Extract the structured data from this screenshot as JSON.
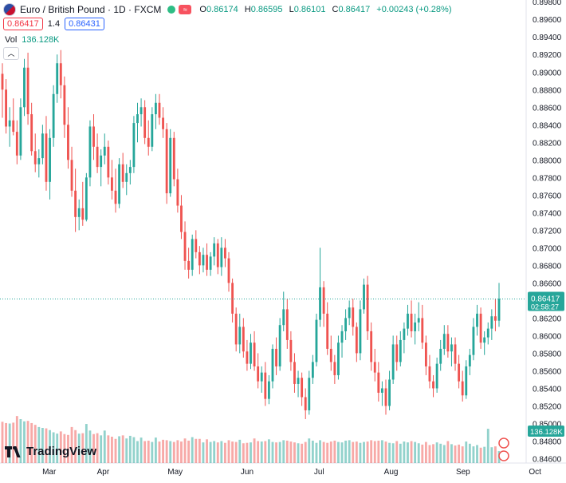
{
  "header": {
    "symbol_title": "Euro / British Pound · 1D · FXCM",
    "ohlc": [
      {
        "k": "O",
        "v": "0.86174"
      },
      {
        "k": "H",
        "v": "0.86595"
      },
      {
        "k": "L",
        "v": "0.86101"
      },
      {
        "k": "C",
        "v": "0.86417"
      },
      {
        "k": "",
        "v": "+0.00243 (+0.28%)"
      }
    ],
    "sell_price": "0.86417",
    "spread": "1.4",
    "buy_price": "0.86431",
    "volume_label": "Vol",
    "volume_value": "136.128K",
    "colors": {
      "up": "#26a69a",
      "down": "#ef5350",
      "accent": "#2962ff"
    }
  },
  "price_scale_labels": [
    "0.89800",
    "0.89600",
    "0.89400",
    "0.89200",
    "0.89000",
    "0.88800",
    "0.88600",
    "0.88400",
    "0.88200",
    "0.88000",
    "0.87800",
    "0.87600",
    "0.87400",
    "0.87200",
    "0.87000",
    "0.86800",
    "0.86600",
    "0.86400",
    "0.86200",
    "0.86000",
    "0.85800",
    "0.85600",
    "0.85400",
    "0.85200",
    "0.85000",
    "0.84800",
    "0.84600"
  ],
  "last_price_label": "0.86417",
  "countdown_label": "02:58:27",
  "volume_tag": "136.128K",
  "time_labels": [
    "Mar",
    "Apr",
    "May",
    "Jun",
    "Jul",
    "Aug",
    "Sep",
    "Oct"
  ],
  "logo_text": "TradingView",
  "chart_data": {
    "type": "candlestick",
    "title": "Euro / British Pound · 1D · FXCM",
    "interval": "1D",
    "ylim": [
      0.8455,
      0.8982
    ],
    "y_ticks": [
      0.898,
      0.896,
      0.894,
      0.892,
      0.89,
      0.888,
      0.886,
      0.884,
      0.882,
      0.88,
      0.878,
      0.876,
      0.874,
      0.872,
      0.87,
      0.868,
      0.866,
      0.864,
      0.862,
      0.86,
      0.858,
      0.856,
      0.854,
      0.852,
      0.85,
      0.848,
      0.846
    ],
    "x_ticks": [
      "Mar",
      "Apr",
      "May",
      "Jun",
      "Jul",
      "Aug",
      "Sep",
      "Oct"
    ],
    "x_tick_days": [
      26,
      56,
      96,
      136,
      176,
      216,
      256,
      296
    ],
    "last_price": 0.86417,
    "grid": false,
    "candles": [
      [
        0.8898,
        0.891,
        0.8848,
        0.888
      ],
      [
        0.888,
        0.8892,
        0.883,
        0.8838
      ],
      [
        0.8838,
        0.886,
        0.8815,
        0.8845
      ],
      [
        0.8845,
        0.887,
        0.8828,
        0.8832
      ],
      [
        0.8832,
        0.8845,
        0.8795,
        0.8805
      ],
      [
        0.8805,
        0.887,
        0.88,
        0.886
      ],
      [
        0.886,
        0.8915,
        0.885,
        0.8905
      ],
      [
        0.8905,
        0.8922,
        0.884,
        0.8852
      ],
      [
        0.8852,
        0.8865,
        0.8805,
        0.881
      ],
      [
        0.881,
        0.883,
        0.8786,
        0.8795
      ],
      [
        0.8795,
        0.8812,
        0.878,
        0.8802
      ],
      [
        0.8802,
        0.884,
        0.8795,
        0.883
      ],
      [
        0.883,
        0.885,
        0.8765,
        0.8775
      ],
      [
        0.8775,
        0.8835,
        0.8755,
        0.8825
      ],
      [
        0.8825,
        0.8885,
        0.8815,
        0.8875
      ],
      [
        0.8875,
        0.892,
        0.8865,
        0.891
      ],
      [
        0.891,
        0.8925,
        0.887,
        0.8885
      ],
      [
        0.8885,
        0.8895,
        0.8825,
        0.884
      ],
      [
        0.884,
        0.886,
        0.879,
        0.88
      ],
      [
        0.88,
        0.8815,
        0.8758,
        0.8765
      ],
      [
        0.8765,
        0.879,
        0.8718,
        0.8735
      ],
      [
        0.8735,
        0.8755,
        0.872,
        0.8745
      ],
      [
        0.8745,
        0.8775,
        0.8725,
        0.8732
      ],
      [
        0.8732,
        0.8785,
        0.873,
        0.878
      ],
      [
        0.878,
        0.8845,
        0.877,
        0.8838
      ],
      [
        0.8838,
        0.8852,
        0.88,
        0.8815
      ],
      [
        0.8815,
        0.883,
        0.8785,
        0.8792
      ],
      [
        0.8792,
        0.8812,
        0.877,
        0.8805
      ],
      [
        0.8805,
        0.883,
        0.8795,
        0.8815
      ],
      [
        0.8815,
        0.8822,
        0.8772,
        0.878
      ],
      [
        0.878,
        0.88,
        0.8755,
        0.8765
      ],
      [
        0.8765,
        0.879,
        0.874,
        0.875
      ],
      [
        0.875,
        0.8802,
        0.8745,
        0.8795
      ],
      [
        0.8795,
        0.8808,
        0.8768,
        0.8775
      ],
      [
        0.8775,
        0.8795,
        0.876,
        0.8785
      ],
      [
        0.8785,
        0.88,
        0.8772,
        0.8792
      ],
      [
        0.8792,
        0.885,
        0.8785,
        0.8842
      ],
      [
        0.8842,
        0.8865,
        0.882,
        0.8852
      ],
      [
        0.8852,
        0.887,
        0.8838,
        0.886
      ],
      [
        0.886,
        0.8868,
        0.8818,
        0.8825
      ],
      [
        0.8825,
        0.8845,
        0.8805,
        0.8815
      ],
      [
        0.8815,
        0.886,
        0.881,
        0.8852
      ],
      [
        0.8852,
        0.8875,
        0.8835,
        0.8865
      ],
      [
        0.8865,
        0.8875,
        0.884,
        0.8848
      ],
      [
        0.8848,
        0.886,
        0.8825,
        0.8835
      ],
      [
        0.8835,
        0.8842,
        0.875,
        0.8762
      ],
      [
        0.8762,
        0.8835,
        0.8758,
        0.8825
      ],
      [
        0.8825,
        0.8832,
        0.877,
        0.8778
      ],
      [
        0.8778,
        0.879,
        0.874,
        0.8748
      ],
      [
        0.8748,
        0.876,
        0.871,
        0.8718
      ],
      [
        0.8718,
        0.873,
        0.8675,
        0.8685
      ],
      [
        0.8685,
        0.87,
        0.8665,
        0.8675
      ],
      [
        0.8675,
        0.8715,
        0.8668,
        0.871
      ],
      [
        0.871,
        0.872,
        0.8688,
        0.8695
      ],
      [
        0.8695,
        0.8702,
        0.867,
        0.868
      ],
      [
        0.868,
        0.87,
        0.8672,
        0.8692
      ],
      [
        0.8692,
        0.8705,
        0.8668,
        0.8675
      ],
      [
        0.8675,
        0.8695,
        0.8668,
        0.869
      ],
      [
        0.869,
        0.8712,
        0.868,
        0.8705
      ],
      [
        0.8705,
        0.871,
        0.867,
        0.8678
      ],
      [
        0.8678,
        0.8712,
        0.8668,
        0.87
      ],
      [
        0.87,
        0.871,
        0.8678,
        0.8688
      ],
      [
        0.8688,
        0.8695,
        0.865,
        0.866
      ],
      [
        0.866,
        0.8665,
        0.8615,
        0.8625
      ],
      [
        0.8625,
        0.8632,
        0.8582,
        0.859
      ],
      [
        0.859,
        0.8625,
        0.858,
        0.861
      ],
      [
        0.861,
        0.862,
        0.8575,
        0.8582
      ],
      [
        0.8582,
        0.8595,
        0.856,
        0.8568
      ],
      [
        0.8568,
        0.8602,
        0.8562,
        0.8592
      ],
      [
        0.8592,
        0.8605,
        0.856,
        0.8565
      ],
      [
        0.8565,
        0.858,
        0.854,
        0.8548
      ],
      [
        0.8548,
        0.8565,
        0.8535,
        0.8558
      ],
      [
        0.8558,
        0.857,
        0.852,
        0.8528
      ],
      [
        0.8528,
        0.8555,
        0.8522,
        0.8548
      ],
      [
        0.8548,
        0.859,
        0.854,
        0.8585
      ],
      [
        0.8585,
        0.8598,
        0.8555,
        0.8565
      ],
      [
        0.8565,
        0.862,
        0.856,
        0.8612
      ],
      [
        0.8612,
        0.865,
        0.8605,
        0.863
      ],
      [
        0.863,
        0.8642,
        0.8585,
        0.8595
      ],
      [
        0.8595,
        0.8605,
        0.856,
        0.857
      ],
      [
        0.857,
        0.858,
        0.8535,
        0.8545
      ],
      [
        0.8545,
        0.856,
        0.853,
        0.8552
      ],
      [
        0.8552,
        0.8558,
        0.852,
        0.853
      ],
      [
        0.853,
        0.854,
        0.8505,
        0.8515
      ],
      [
        0.8515,
        0.856,
        0.851,
        0.8552
      ],
      [
        0.8552,
        0.8578,
        0.8545,
        0.857
      ],
      [
        0.857,
        0.8625,
        0.8565,
        0.8618
      ],
      [
        0.8618,
        0.87,
        0.861,
        0.8655
      ],
      [
        0.8655,
        0.8662,
        0.861,
        0.8625
      ],
      [
        0.8625,
        0.8638,
        0.8578,
        0.8585
      ],
      [
        0.8585,
        0.86,
        0.856,
        0.857
      ],
      [
        0.857,
        0.8578,
        0.8545,
        0.8555
      ],
      [
        0.8555,
        0.86,
        0.855,
        0.8592
      ],
      [
        0.8592,
        0.8612,
        0.8575,
        0.8605
      ],
      [
        0.8605,
        0.863,
        0.8595,
        0.862
      ],
      [
        0.862,
        0.864,
        0.8612,
        0.8632
      ],
      [
        0.8632,
        0.8642,
        0.86,
        0.861
      ],
      [
        0.861,
        0.8615,
        0.857,
        0.858
      ],
      [
        0.858,
        0.864,
        0.8572,
        0.863
      ],
      [
        0.863,
        0.8665,
        0.8625,
        0.8658
      ],
      [
        0.8658,
        0.8668,
        0.8595,
        0.8605
      ],
      [
        0.8605,
        0.8615,
        0.856,
        0.857
      ],
      [
        0.857,
        0.8585,
        0.8548,
        0.8558
      ],
      [
        0.8558,
        0.857,
        0.8525,
        0.8535
      ],
      [
        0.8535,
        0.8548,
        0.852,
        0.854
      ],
      [
        0.854,
        0.855,
        0.851,
        0.852
      ],
      [
        0.852,
        0.856,
        0.8515,
        0.855
      ],
      [
        0.855,
        0.86,
        0.8545,
        0.859
      ],
      [
        0.859,
        0.86,
        0.856,
        0.857
      ],
      [
        0.857,
        0.8605,
        0.8565,
        0.8595
      ],
      [
        0.8595,
        0.8615,
        0.858,
        0.8608
      ],
      [
        0.8608,
        0.8635,
        0.86,
        0.8625
      ],
      [
        0.8625,
        0.864,
        0.8598,
        0.8605
      ],
      [
        0.8605,
        0.8625,
        0.859,
        0.8615
      ],
      [
        0.8615,
        0.8638,
        0.8605,
        0.862
      ],
      [
        0.862,
        0.8635,
        0.8585,
        0.8592
      ],
      [
        0.8592,
        0.86,
        0.8555,
        0.8565
      ],
      [
        0.8565,
        0.8578,
        0.854,
        0.8548
      ],
      [
        0.8548,
        0.8555,
        0.853,
        0.854
      ],
      [
        0.854,
        0.8575,
        0.8535,
        0.8568
      ],
      [
        0.8568,
        0.8595,
        0.856,
        0.8585
      ],
      [
        0.8585,
        0.8612,
        0.8578,
        0.8602
      ],
      [
        0.8602,
        0.8612,
        0.8575,
        0.8582
      ],
      [
        0.8582,
        0.8598,
        0.8565,
        0.859
      ],
      [
        0.859,
        0.8598,
        0.856,
        0.8568
      ],
      [
        0.8568,
        0.8578,
        0.854,
        0.8548
      ],
      [
        0.8548,
        0.856,
        0.8525,
        0.8532
      ],
      [
        0.8532,
        0.8572,
        0.8528,
        0.8565
      ],
      [
        0.8565,
        0.8585,
        0.8555,
        0.8578
      ],
      [
        0.8578,
        0.862,
        0.8572,
        0.861
      ],
      [
        0.861,
        0.8635,
        0.86,
        0.8625
      ],
      [
        0.8625,
        0.8632,
        0.8585,
        0.8592
      ],
      [
        0.8592,
        0.8605,
        0.8578,
        0.8598
      ],
      [
        0.8598,
        0.8615,
        0.859,
        0.8608
      ],
      [
        0.8608,
        0.863,
        0.8595,
        0.8622
      ],
      [
        0.8622,
        0.8642,
        0.8605,
        0.8617
      ],
      [
        0.8617,
        0.866,
        0.861,
        0.8642
      ]
    ],
    "volume": [
      47.0,
      45.5,
      45.0,
      46.0,
      53.5,
      50.0,
      47.5,
      48.0,
      45.5,
      43.5,
      41.0,
      40.0,
      39.5,
      37.5,
      35.0,
      33.5,
      36.0,
      33.0,
      32.0,
      41.0,
      37.5,
      33.5,
      34.0,
      44.5,
      37.0,
      33.0,
      34.0,
      31.5,
      37.0,
      31.5,
      30.0,
      27.5,
      30.5,
      31.5,
      28.0,
      31.0,
      29.5,
      25.0,
      29.0,
      25.0,
      25.5,
      24.0,
      29.0,
      24.5,
      26.5,
      26.0,
      25.0,
      24.0,
      26.0,
      24.5,
      28.0,
      25.5,
      29.5,
      27.5,
      27.5,
      23.5,
      27.0,
      24.0,
      25.0,
      23.5,
      25.0,
      23.0,
      26.0,
      24.5,
      24.0,
      26.5,
      22.5,
      23.0,
      23.5,
      28.0,
      25.0,
      24.5,
      25.0,
      27.0,
      24.0,
      23.5,
      24.0,
      26.0,
      25.5,
      24.5,
      23.5,
      22.5,
      22.0,
      24.0,
      28.0,
      25.5,
      23.0,
      26.0,
      24.0,
      23.0,
      24.5,
      25.5,
      24.0,
      23.5,
      25.5,
      26.0,
      24.0,
      24.5,
      23.0,
      24.0,
      24.5,
      26.0,
      25.0,
      25.5,
      26.0,
      24.5,
      23.0,
      22.5,
      25.0,
      22.0,
      24.5,
      23.5,
      25.0,
      24.0,
      22.5,
      21.0,
      24.0,
      20.5,
      21.5,
      23.5,
      22.0,
      20.5,
      25.0,
      21.5,
      20.0,
      21.0,
      19.0,
      24.5,
      22.0,
      19.0,
      20.5,
      17.5,
      18.5,
      39.0,
      18.0,
      19.0,
      13.6
    ]
  }
}
